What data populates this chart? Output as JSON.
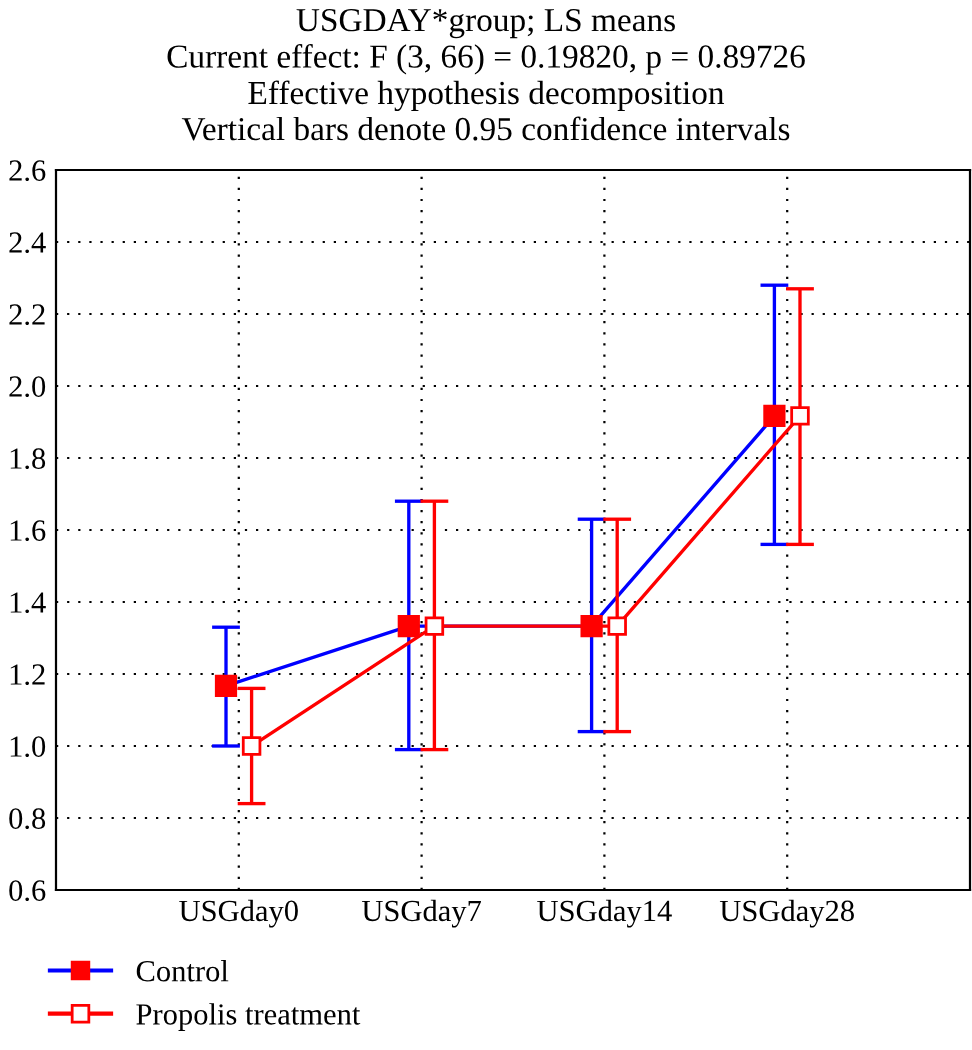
{
  "chart_data": {
    "type": "line",
    "title": "USGDAY*group; LS means",
    "subtitle": "Current effect: F (3, 66) = 0.19820, p = 0.89726\nEffective hypothesis decomposition\nVertical bars denote 0.95 confidence intervals",
    "categories": [
      "USGday0",
      "USGday7",
      "USGday14",
      "USGday28"
    ],
    "series": [
      {
        "name": "Control",
        "color": "#0000ff",
        "colors": [
          "#ff0000",
          "#ff0000",
          "#ff0000",
          "#ff0000"
        ],
        "values": [
          1.167,
          1.333,
          1.333,
          1.917
        ],
        "errors": [
          [
            1.0,
            1.33
          ],
          [
            0.99,
            1.68
          ],
          [
            1.04,
            1.63
          ],
          [
            1.56,
            2.28
          ]
        ]
      },
      {
        "name": "Propolis treatment",
        "color": "#ff0000",
        "colors": [
          "#ff0000",
          "#ff0000",
          "#ff0000",
          "#ff0000"
        ],
        "values": [
          1.0,
          1.333,
          1.333,
          1.917
        ],
        "errors": [
          [
            0.84,
            1.16
          ],
          [
            0.99,
            1.68
          ],
          [
            1.04,
            1.63
          ],
          [
            1.56,
            2.27
          ]
        ]
      }
    ],
    "ylim": [
      0.6,
      2.6
    ],
    "yticks": [
      0.6,
      0.8,
      {
        "value": 1,
        "label": "1.0"
      },
      1.2,
      1.4,
      1.6,
      1.8,
      {
        "value": 2,
        "label": "2.0"
      },
      2.2,
      2.4,
      2.6
    ],
    "grid": true,
    "legend": "bottom left",
    "marker": "square",
    "line_style": "solid"
  }
}
